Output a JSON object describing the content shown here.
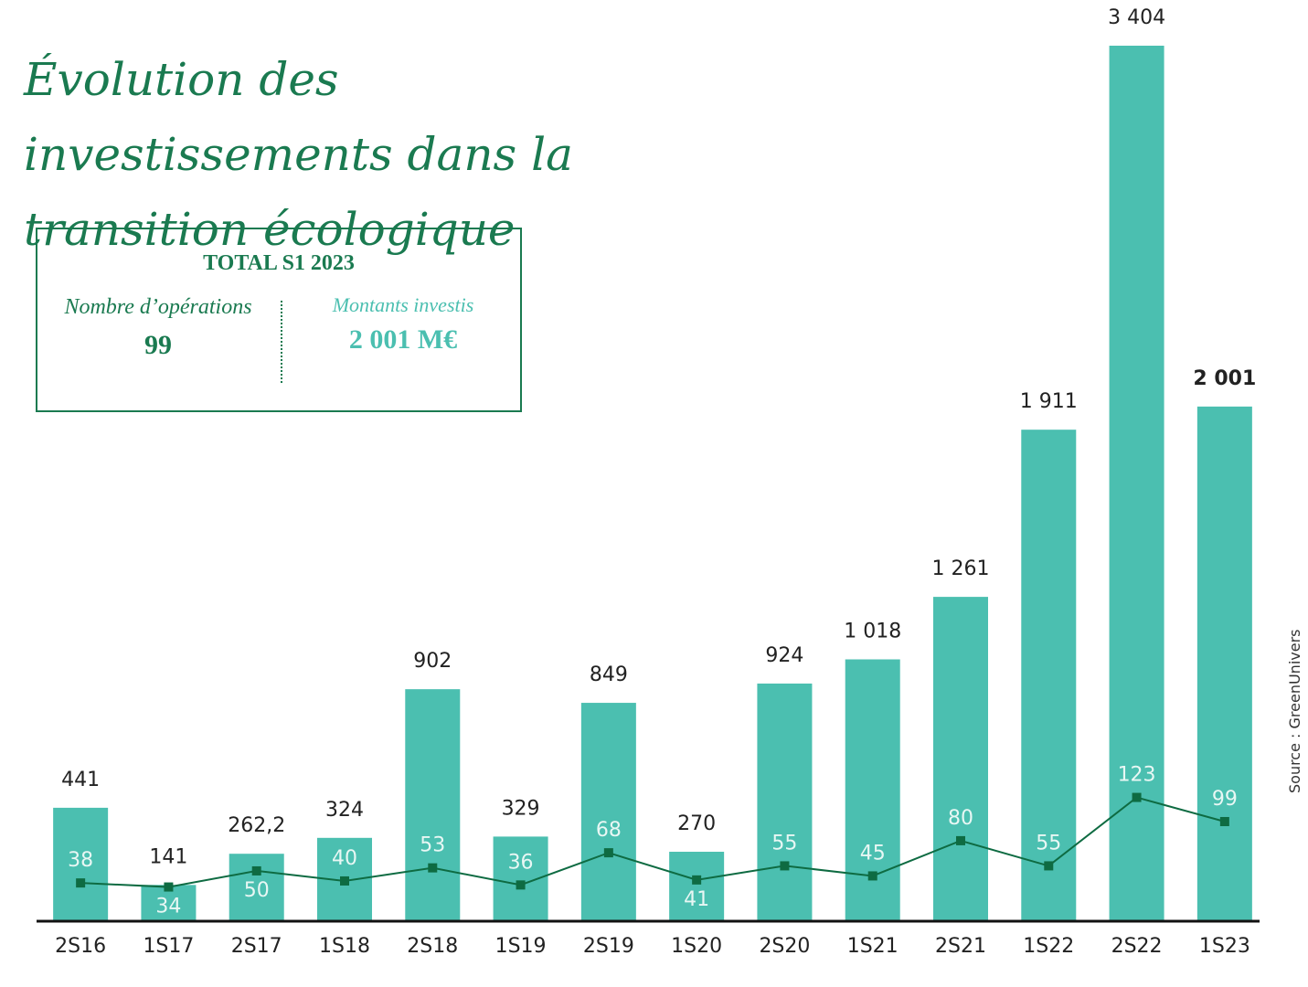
{
  "chart_data": {
    "type": "bar-line",
    "title": "Évolution des investissements dans la transition écologique",
    "source": "Source : GreenUnivers",
    "summary": {
      "heading": "TOTAL S1 2023",
      "left_label": "Nombre d’opérations",
      "left_value": "99",
      "right_label": "Montants investis",
      "right_value": "2 001 M€"
    },
    "categories": [
      "2S16",
      "1S17",
      "2S17",
      "1S18",
      "2S18",
      "1S19",
      "2S19",
      "1S20",
      "2S20",
      "1S21",
      "2S21",
      "1S22",
      "2S22",
      "1S23"
    ],
    "series": [
      {
        "type": "bar",
        "color": "#4bbfb0",
        "values": [
          441,
          141,
          262.2,
          324,
          902,
          329,
          849,
          270,
          924,
          1018,
          1261,
          1911,
          3404,
          2001
        ],
        "value_labels": [
          "441",
          "141",
          "262,2",
          "324",
          "902",
          "329",
          "849",
          "270",
          "924",
          "1 018",
          "1 261",
          "1 911",
          "3 404",
          "2 001"
        ]
      },
      {
        "type": "line",
        "axis": "y2",
        "color": "#0e6b42",
        "values": [
          38,
          34,
          50,
          40,
          53,
          36,
          68,
          41,
          55,
          45,
          80,
          55,
          123,
          99
        ]
      }
    ],
    "ylim": [
      0,
      3404
    ],
    "y2lim": [
      0,
      870
    ]
  }
}
